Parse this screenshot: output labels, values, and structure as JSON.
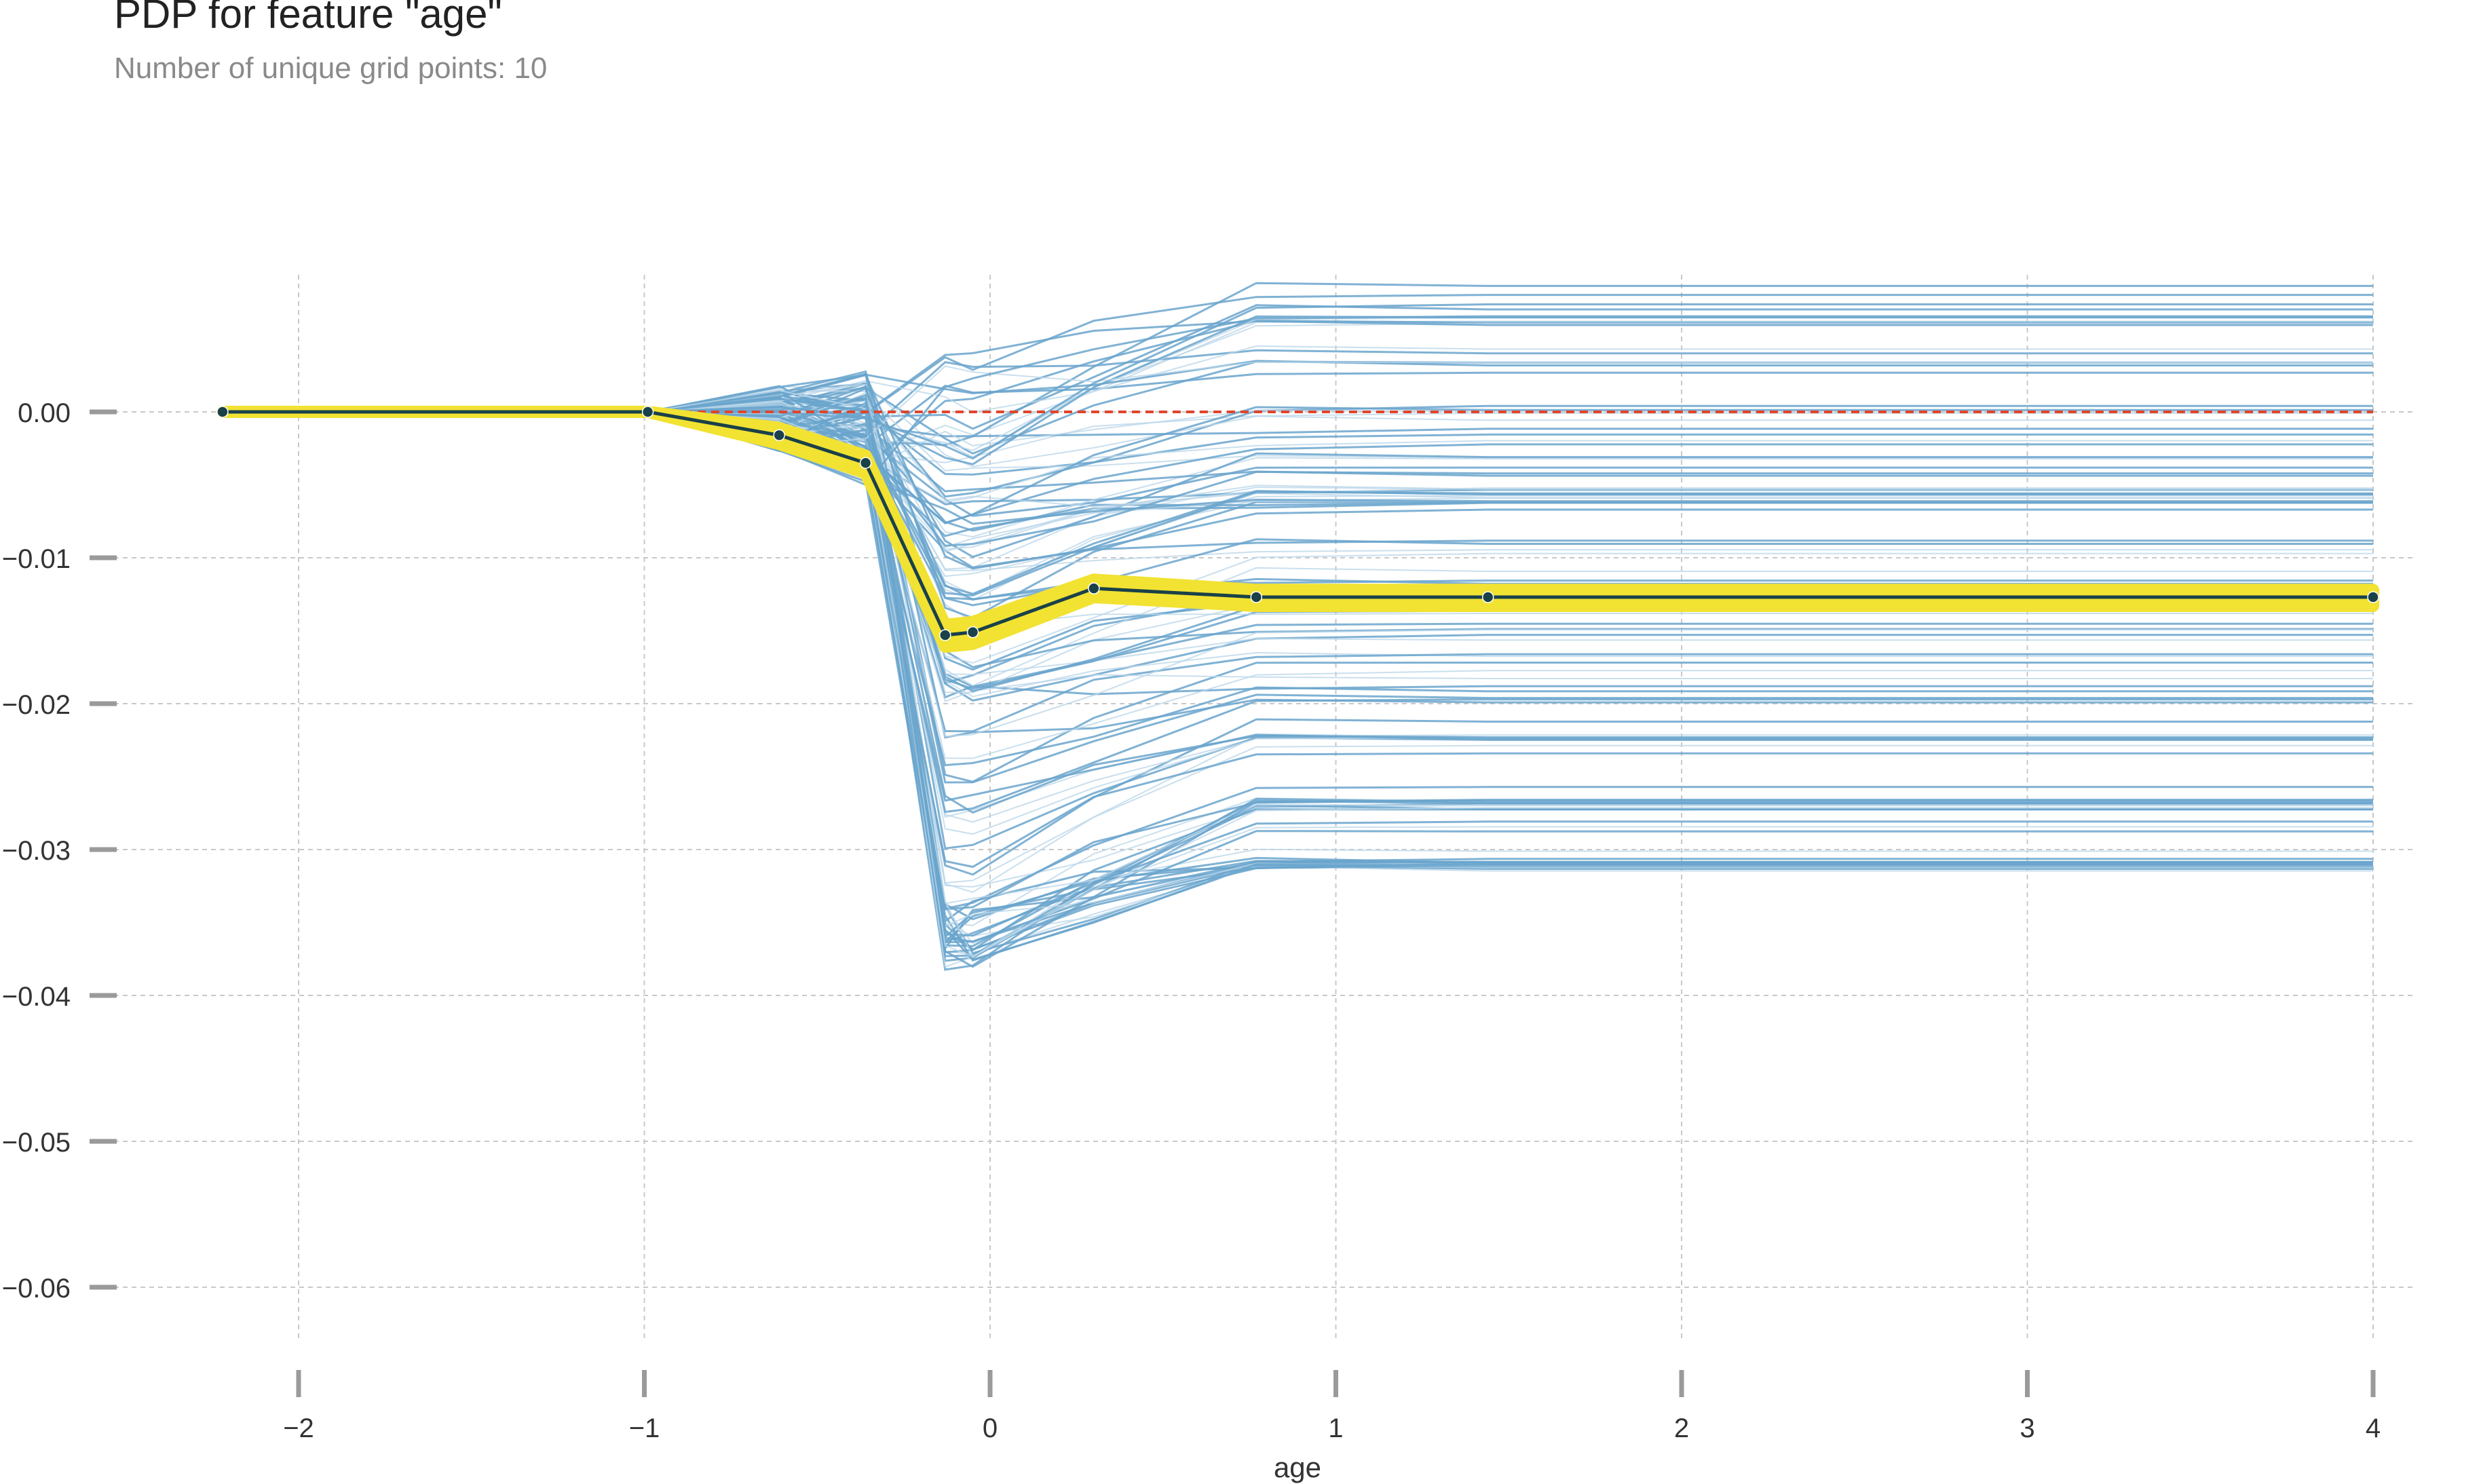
{
  "chart_data": {
    "type": "line",
    "title": "PDP for feature \"age\"",
    "subtitle": "Number of unique grid points: 10",
    "xlabel": "age",
    "ylabel": "",
    "xlim": [
      -2.5,
      4.1
    ],
    "ylim": [
      -0.066,
      0.0095
    ],
    "grid": true,
    "x_ticks": [
      -2,
      -1,
      0,
      1,
      2,
      3,
      4
    ],
    "x_tick_labels": [
      "−2",
      "−1",
      "0",
      "1",
      "2",
      "3",
      "4"
    ],
    "y_ticks": [
      0.0,
      -0.01,
      -0.02,
      -0.03,
      -0.04,
      -0.05,
      -0.06
    ],
    "y_tick_labels": [
      "0.00",
      "−0.01",
      "−0.02",
      "−0.03",
      "−0.04",
      "−0.05",
      "−0.06"
    ],
    "grid_x": [
      -2.22,
      -0.99,
      -0.61,
      -0.36,
      -0.13,
      -0.05,
      0.3,
      0.77,
      1.44,
      4.0
    ],
    "pdp_line": {
      "x": [
        -2.22,
        -0.99,
        -0.61,
        -0.36,
        -0.13,
        -0.05,
        0.3,
        0.77,
        1.44,
        4.0
      ],
      "y": [
        0.0,
        0.0,
        -0.0016,
        -0.0035,
        -0.0153,
        -0.0151,
        -0.0121,
        -0.0127,
        -0.0127,
        -0.0127
      ],
      "band_upper": [
        0.0,
        0.0,
        -0.0011,
        -0.003,
        -0.0146,
        -0.0144,
        -0.0115,
        -0.0122,
        -0.0122,
        -0.0122
      ],
      "band_lower": [
        0.0,
        0.0,
        -0.0022,
        -0.0042,
        -0.0161,
        -0.0159,
        -0.0127,
        -0.0133,
        -0.0133,
        -0.0133
      ]
    },
    "reference_line": {
      "y": 0.0
    },
    "ice_lines": {
      "count": 120,
      "final_value_range": [
        -0.0315,
        0.009
      ],
      "min_value": -0.0378
    },
    "colors": {
      "ice": "#6aa5cd",
      "ice_light": "#bcd7ea",
      "pdp_line": "#1a4148",
      "pdp_band": "#f2e232",
      "pdp_marker": "#1a4148",
      "reference": "#e0452c",
      "grid": "#c8c8c8",
      "tick_mark": "#9a9a9a",
      "text": "#333333"
    }
  }
}
